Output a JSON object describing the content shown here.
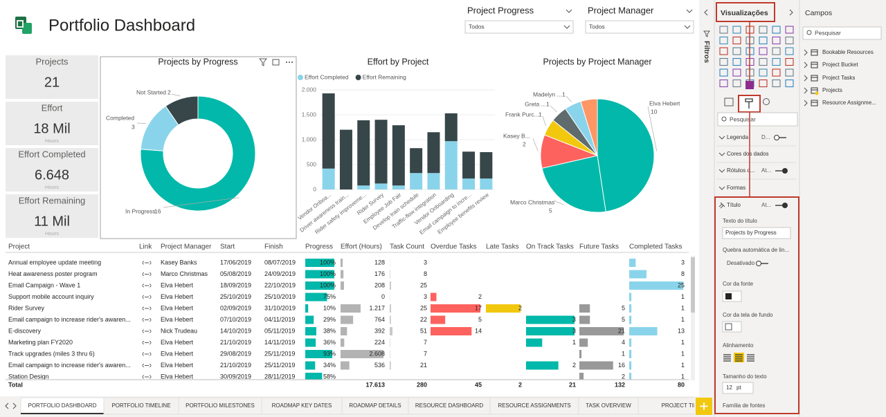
{
  "header": {
    "title": "Portfolio Dashboard"
  },
  "slicers": [
    {
      "label": "Project Progress",
      "value": "Todos"
    },
    {
      "label": "Project Manager",
      "value": "Todos"
    }
  ],
  "cards": [
    {
      "label": "Projects",
      "value": "21"
    },
    {
      "label": "Effort",
      "value": "18 Mil",
      "unit": "Hours"
    },
    {
      "label": "Effort Completed",
      "value": "6.648",
      "unit": "Hours"
    },
    {
      "label": "Effort Remaining",
      "value": "11 Mil",
      "unit": "Hours"
    }
  ],
  "donut": {
    "title": "Projects by Progress",
    "slices": [
      {
        "name": "In Progress",
        "value": 16,
        "color": "#01b8aa"
      },
      {
        "name": "Completed",
        "value": 3,
        "color": "#8ad4eb"
      },
      {
        "name": "Not Started",
        "value": 2,
        "color": "#374649"
      }
    ]
  },
  "effort_chart": {
    "title": "Effort by Project",
    "categories": [
      "Vendor Onboa...",
      "Driver awareness train...",
      "Rider safety improveme...",
      "Rider Survey",
      "Employee Job Fair",
      "Develop train schedule",
      "Traffic-flow integration",
      "Vendor Onboarding",
      "Email campaign to incre...",
      "Employee benefits review"
    ],
    "series": [
      {
        "name": "Effort Completed",
        "color": "#8ad4eb",
        "values": [
          420,
          0,
          80,
          120,
          80,
          330,
          330,
          970,
          220,
          220
        ]
      },
      {
        "name": "Effort Remaining",
        "color": "#374649",
        "values": [
          1510,
          1200,
          1310,
          1280,
          1210,
          500,
          820,
          560,
          540,
          530
        ]
      }
    ],
    "ylim": [
      0,
      2000
    ],
    "yticks": [
      0,
      500,
      {
        "value": 1000,
        "label": "1.000"
      },
      {
        "value": 1500,
        "label": "1.500"
      },
      {
        "value": 2000,
        "label": "2.000"
      }
    ]
  },
  "pie": {
    "title": "Projects by Project Manager",
    "slices": [
      {
        "name": "Elva Hebert",
        "value": 10,
        "color": "#01b8aa"
      },
      {
        "name": "Marco Christmas",
        "value": 5,
        "color": "#01b8aa"
      },
      {
        "name": "Kasey B...",
        "value": 2,
        "color": "#fd625e"
      },
      {
        "name": "Frank Purc...",
        "value": 1,
        "color": "#f2c80f"
      },
      {
        "name": "Greta ...",
        "value": 1,
        "color": "#5f6b6d"
      },
      {
        "name": "Madelyn ...",
        "value": 1,
        "color": "#8ad4eb"
      },
      {
        "name": null,
        "value": 1,
        "color": "#fe9666"
      }
    ]
  },
  "table": {
    "columns": [
      "Project",
      "Link",
      "Project Manager",
      "Start",
      "Finish",
      "Progress",
      "Effort (Hours)",
      "Task Count",
      "Overdue Tasks",
      "Late Tasks",
      "On Track Tasks",
      "Future Tasks",
      "Completed Tasks"
    ],
    "bar_colors": [
      null,
      null,
      null,
      null,
      null,
      "#01b8aa",
      "#b3b3b3",
      "#c8c8c8",
      "#fd625e",
      "#f2c80f",
      "#01b8aa",
      "#999999",
      "#8ad4eb"
    ],
    "rows": [
      [
        "Annual employee update meeting",
        null,
        "Kasey Banks",
        "17/06/2019",
        "08/07/2019",
        {
          "value": 100,
          "label": "100%"
        },
        128,
        3,
        null,
        null,
        null,
        null,
        3
      ],
      [
        "Heat awareness poster program",
        null,
        "Marco Christmas",
        "05/08/2019",
        "24/09/2019",
        {
          "value": 100,
          "label": "100%"
        },
        176,
        8,
        null,
        null,
        null,
        null,
        8
      ],
      [
        "Email Campaign - Wave 1",
        null,
        "Elva Hebert",
        "18/09/2019",
        "22/10/2019",
        {
          "value": 100,
          "label": "100%"
        },
        208,
        25,
        null,
        null,
        null,
        null,
        25
      ],
      [
        "Support mobile account inquiry",
        null,
        "Elva Hebert",
        "25/10/2019",
        "25/10/2019",
        {
          "value": 75,
          "label": "75%"
        },
        0,
        3,
        2,
        null,
        null,
        null,
        1
      ],
      [
        "Rider Survey",
        null,
        "Elva Hebert",
        "02/09/2019",
        "31/10/2019",
        {
          "value": 10,
          "label": "10%"
        },
        {
          "value": 1217,
          "label": "1.217"
        },
        25,
        17,
        2,
        null,
        5,
        1
      ],
      [
        "Email campaign to increase rider's awaren...",
        null,
        "Elva Hebert",
        "07/10/2019",
        "04/11/2019",
        {
          "value": 29,
          "label": "29%"
        },
        764,
        22,
        5,
        null,
        3,
        5,
        1
      ],
      [
        "E-discovery",
        null,
        "Nick Trudeau",
        "14/10/2019",
        "05/11/2019",
        {
          "value": 38,
          "label": "38%"
        },
        392,
        51,
        14,
        null,
        3,
        21,
        13
      ],
      [
        "Marketing plan FY2020",
        null,
        "Elva Hebert",
        "21/10/2019",
        "14/11/2019",
        {
          "value": 36,
          "label": "36%"
        },
        224,
        7,
        null,
        null,
        1,
        4,
        1
      ],
      [
        "Track upgrades (miles 3 thru 6)",
        null,
        "Elva Hebert",
        "29/08/2019",
        "25/11/2019",
        {
          "value": 93,
          "label": "93%"
        },
        {
          "value": 2608,
          "label": "2.608"
        },
        7,
        null,
        null,
        null,
        1,
        1
      ],
      [
        "Email campaign to increase rider's awaren...",
        null,
        "Elva Hebert",
        "21/10/2019",
        "25/11/2019",
        {
          "value": 34,
          "label": "34%"
        },
        536,
        21,
        null,
        null,
        2,
        16,
        1
      ],
      [
        "Station Design",
        null,
        "Elva Hebert",
        "30/09/2019",
        "28/11/2019",
        {
          "value": 58,
          "label": "58%"
        },
        null,
        null,
        null,
        null,
        null,
        2,
        1
      ]
    ],
    "total": [
      "Total",
      null,
      null,
      null,
      null,
      null,
      {
        "value": 17613,
        "label": "17.613"
      },
      280,
      45,
      2,
      21,
      132,
      80
    ]
  },
  "tabs": [
    "PORTFOLIO DASHBOARD",
    "PORTFOLIO TIMELINE",
    "PORTFOLIO MILESTONES",
    "ROADMAP KEY DATES",
    "ROADMAP DETAILS",
    "RESOURCE DASHBOARD",
    "RESOURCE ASSIGNMENTS",
    "TASK OVERVIEW",
    "PROJECT TIMELIN"
  ],
  "filters_pane": {
    "title": "Filtros"
  },
  "viz_pane": {
    "title": "Visualizações",
    "search": "Pesquisar",
    "sections": [
      {
        "label": "Legenda",
        "state": "D..."
      },
      {
        "label": "Cores dos dados",
        "state": null
      },
      {
        "label": "Rótulos d...",
        "state": "At..."
      },
      {
        "label": "Formas",
        "state": null
      }
    ],
    "title_section": {
      "label": "Título",
      "state": "At...",
      "text_label": "Texto do título",
      "text_value": "Projects by Progress",
      "wrap_label": "Quebra automática de lin...",
      "wrap_value": "Desativado",
      "font_color": "Cor da fonte",
      "bg_color": "Cor da tela de fundo",
      "align": "Alinhamento",
      "size_label": "Tamanho do texto",
      "size_value": 12,
      "size_unit": "pt",
      "font_family": "Família de fontes"
    }
  },
  "fields_pane": {
    "title": "Campos",
    "search": "Pesquisar",
    "tables": [
      "Bookable Resources",
      "Project Bucket",
      "Project Tasks",
      "Projects",
      "Resource Assignme..."
    ]
  }
}
